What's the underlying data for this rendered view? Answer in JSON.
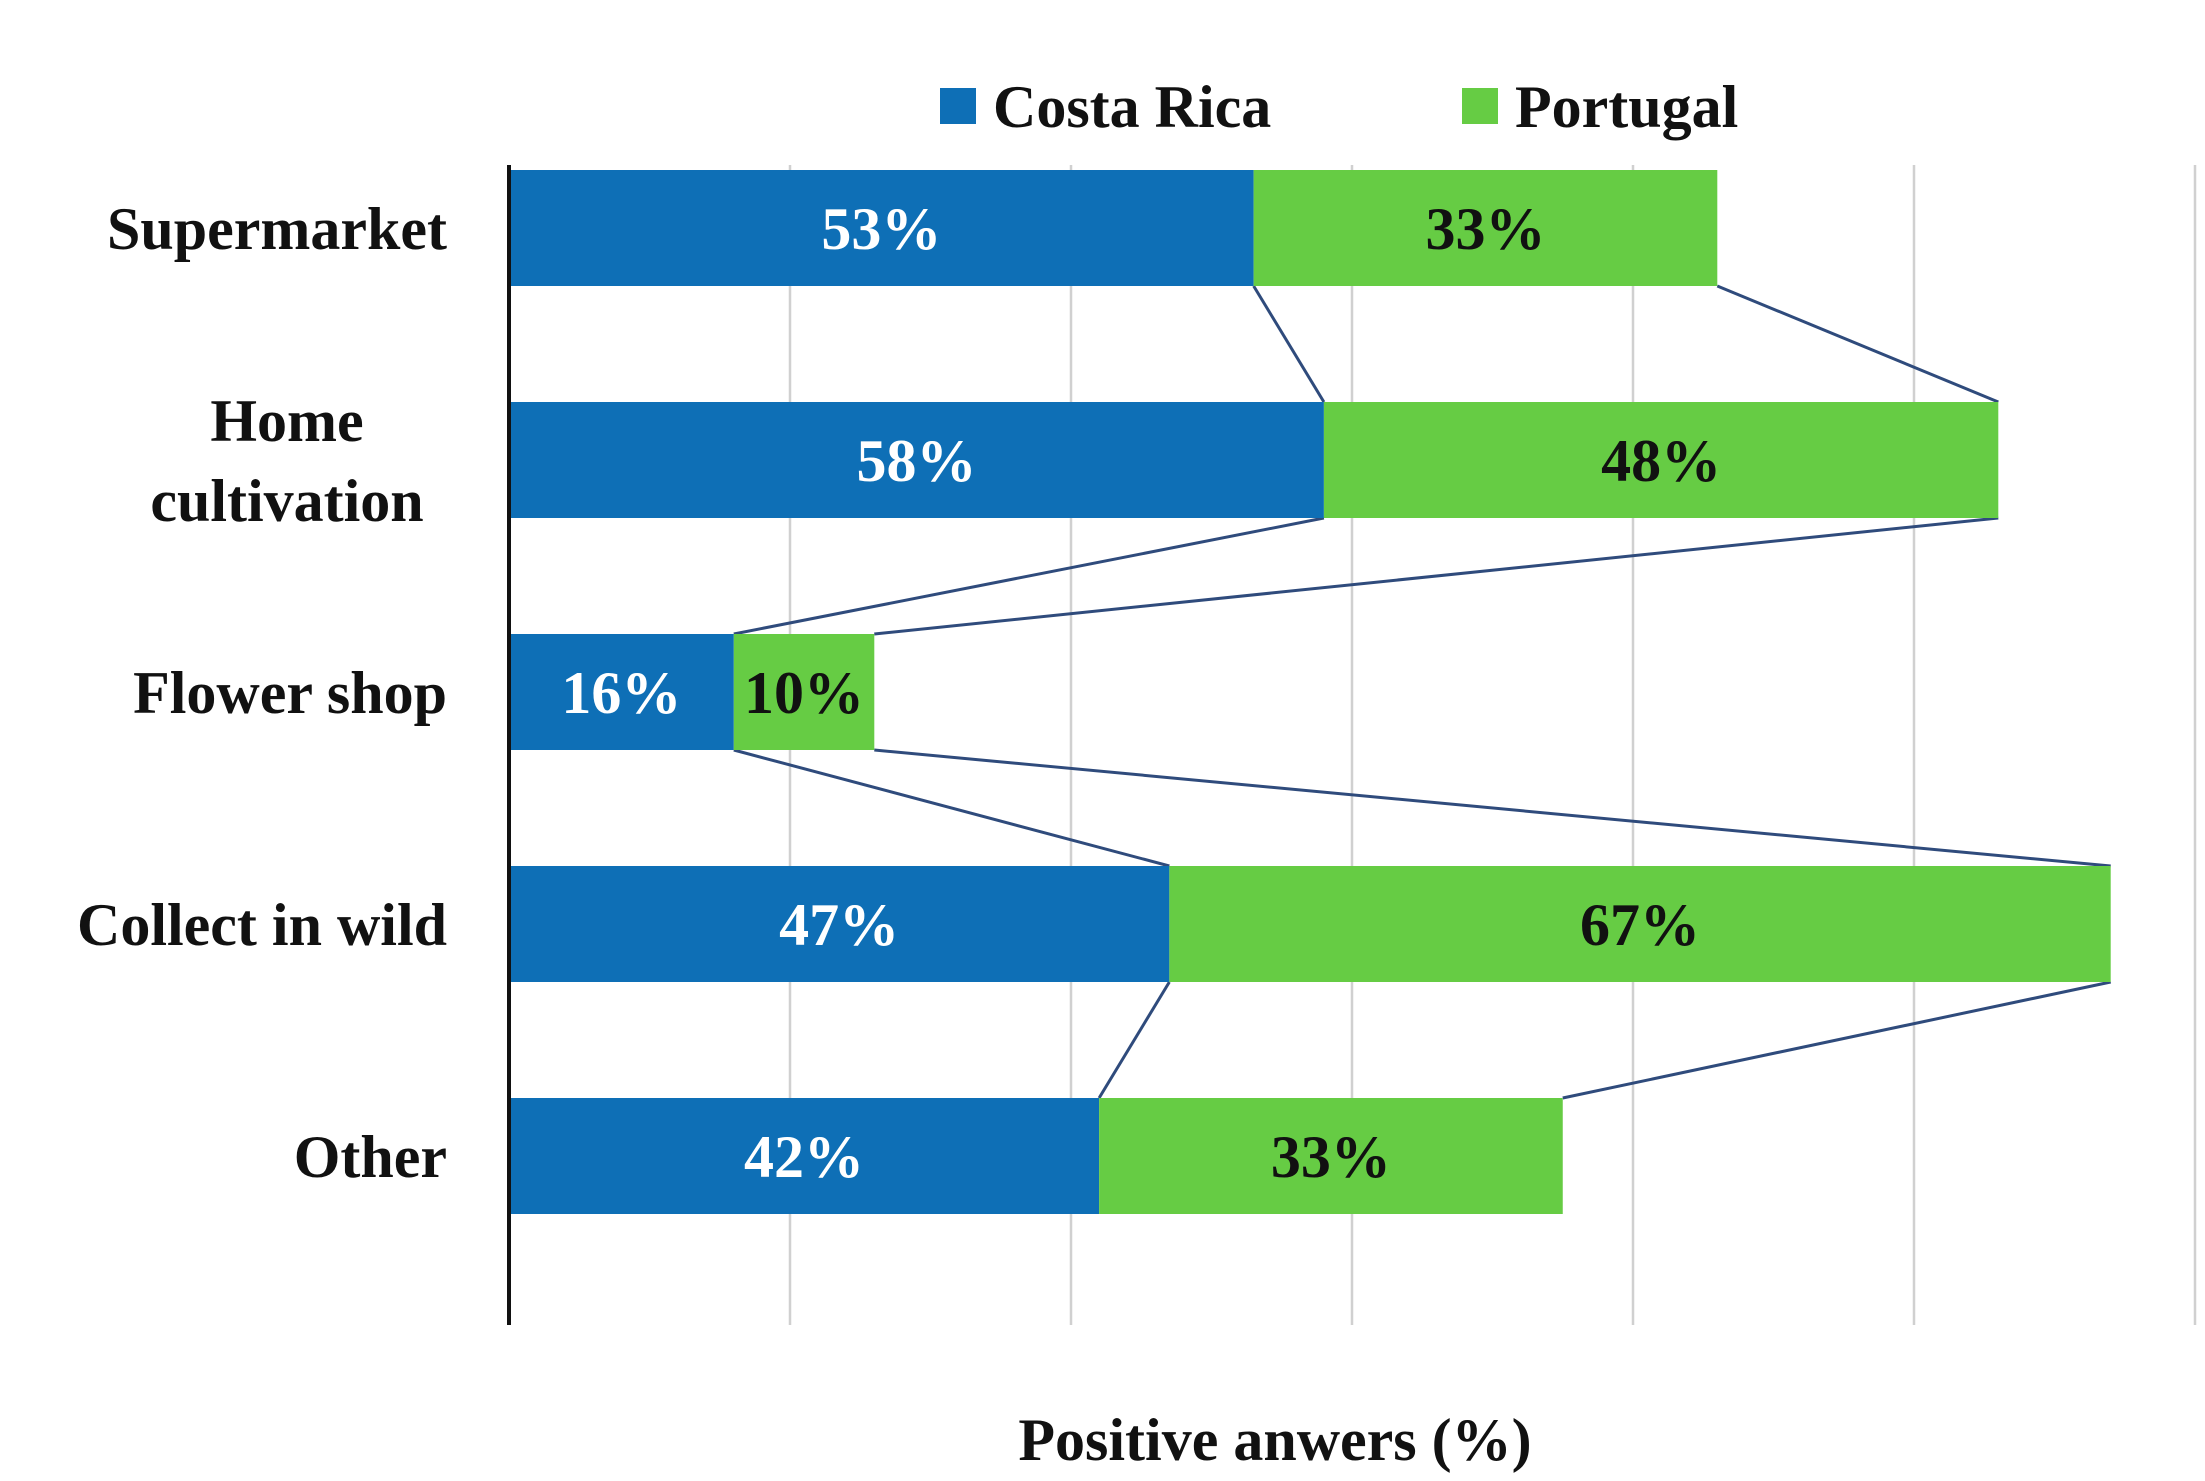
{
  "chart_data": {
    "type": "bar",
    "orientation": "horizontal",
    "stacked": true,
    "categories": [
      "Supermarket",
      "Home cultivation",
      "Flower shop",
      "Collect in wild",
      "Other"
    ],
    "category_lines": [
      [
        "Supermarket"
      ],
      [
        "Home",
        "cultivation"
      ],
      [
        "Flower shop"
      ],
      [
        "Collect in wild"
      ],
      [
        "Other"
      ]
    ],
    "series": [
      {
        "name": "Costa Rica",
        "color": "#0e6fb6",
        "label_color": "#ffffff",
        "values": [
          53,
          58,
          16,
          47,
          42
        ],
        "labels": [
          "53%",
          "58%",
          "16%",
          "47%",
          "42%"
        ]
      },
      {
        "name": "Portugal",
        "color": "#66cc44",
        "label_color": "#111111",
        "values": [
          33,
          48,
          10,
          67,
          33
        ],
        "labels": [
          "33%",
          "48%",
          "10%",
          "67%",
          "33%"
        ]
      }
    ],
    "xlabel": "Positive anwers (%)",
    "xlim": [
      0,
      120
    ],
    "grid": true,
    "legend_position": "top",
    "series_lines": true,
    "series_line_color": "#2f4b7c",
    "grid_color": "#d0d0d0"
  }
}
